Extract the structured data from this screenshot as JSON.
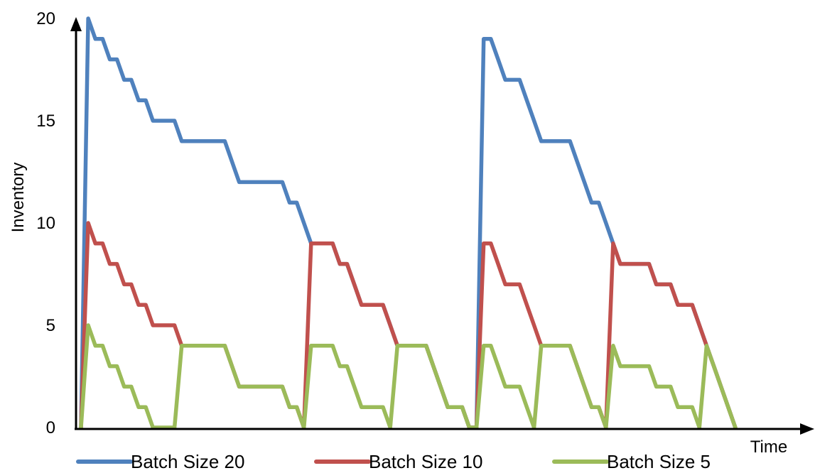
{
  "chart_data": {
    "type": "line",
    "title": "",
    "xlabel": "Time",
    "ylabel": "Inventory",
    "ylim": [
      0,
      20
    ],
    "yticks": [
      "0",
      "5",
      "10",
      "15",
      "20"
    ],
    "xlim": [
      0,
      100
    ],
    "grid": false,
    "legend_position": "bottom",
    "series": [
      {
        "name": "Batch Size 20",
        "color": "#4f81bd",
        "points": [
          [
            0,
            0
          ],
          [
            1,
            20
          ],
          [
            2,
            19
          ],
          [
            3,
            19
          ],
          [
            4,
            18
          ],
          [
            5,
            18
          ],
          [
            6,
            17
          ],
          [
            7,
            17
          ],
          [
            8,
            16
          ],
          [
            9,
            16
          ],
          [
            10,
            15
          ],
          [
            13,
            15
          ],
          [
            14,
            14
          ],
          [
            20,
            14
          ],
          [
            21,
            13
          ],
          [
            22,
            12
          ],
          [
            28,
            12
          ],
          [
            29,
            11
          ],
          [
            30,
            11
          ],
          [
            31,
            10
          ],
          [
            32,
            9
          ],
          [
            35,
            9
          ],
          [
            36,
            8
          ],
          [
            37,
            8
          ],
          [
            38,
            7
          ],
          [
            39,
            6
          ],
          [
            42,
            6
          ],
          [
            43,
            5
          ],
          [
            44,
            4
          ],
          [
            48,
            4
          ],
          [
            49,
            3
          ],
          [
            50,
            2
          ],
          [
            51,
            1
          ],
          [
            53,
            1
          ],
          [
            54,
            0
          ],
          [
            55,
            0
          ],
          [
            56,
            19
          ],
          [
            57,
            19
          ],
          [
            58,
            18
          ],
          [
            59,
            17
          ],
          [
            61,
            17
          ],
          [
            62,
            16
          ],
          [
            63,
            15
          ],
          [
            64,
            14
          ],
          [
            68,
            14
          ],
          [
            69,
            13
          ],
          [
            70,
            12
          ],
          [
            71,
            11
          ],
          [
            72,
            11
          ],
          [
            73,
            10
          ],
          [
            74,
            9
          ],
          [
            75,
            8
          ],
          [
            79,
            8
          ],
          [
            80,
            7
          ],
          [
            82,
            7
          ],
          [
            83,
            6
          ],
          [
            85,
            6
          ],
          [
            86,
            5
          ],
          [
            87,
            4
          ],
          [
            88,
            3
          ],
          [
            89,
            2
          ],
          [
            90,
            1
          ],
          [
            91,
            0
          ]
        ]
      },
      {
        "name": "Batch Size 10",
        "color": "#c0504d",
        "points": [
          [
            0,
            0
          ],
          [
            1,
            10
          ],
          [
            2,
            9
          ],
          [
            3,
            9
          ],
          [
            4,
            8
          ],
          [
            5,
            8
          ],
          [
            6,
            7
          ],
          [
            7,
            7
          ],
          [
            8,
            6
          ],
          [
            9,
            6
          ],
          [
            10,
            5
          ],
          [
            13,
            5
          ],
          [
            14,
            4
          ],
          [
            20,
            4
          ],
          [
            21,
            3
          ],
          [
            22,
            2
          ],
          [
            28,
            2
          ],
          [
            29,
            1
          ],
          [
            30,
            1
          ],
          [
            31,
            0
          ],
          [
            32,
            9
          ],
          [
            35,
            9
          ],
          [
            36,
            8
          ],
          [
            37,
            8
          ],
          [
            38,
            7
          ],
          [
            39,
            6
          ],
          [
            42,
            6
          ],
          [
            43,
            5
          ],
          [
            44,
            4
          ],
          [
            48,
            4
          ],
          [
            49,
            3
          ],
          [
            50,
            2
          ],
          [
            51,
            1
          ],
          [
            53,
            1
          ],
          [
            54,
            0
          ],
          [
            55,
            0
          ],
          [
            56,
            9
          ],
          [
            57,
            9
          ],
          [
            58,
            8
          ],
          [
            59,
            7
          ],
          [
            61,
            7
          ],
          [
            62,
            6
          ],
          [
            63,
            5
          ],
          [
            64,
            4
          ],
          [
            68,
            4
          ],
          [
            69,
            3
          ],
          [
            70,
            2
          ],
          [
            71,
            1
          ],
          [
            72,
            1
          ],
          [
            73,
            0
          ],
          [
            74,
            9
          ],
          [
            75,
            8
          ],
          [
            79,
            8
          ],
          [
            80,
            7
          ],
          [
            82,
            7
          ],
          [
            83,
            6
          ],
          [
            85,
            6
          ],
          [
            86,
            5
          ],
          [
            87,
            4
          ],
          [
            88,
            3
          ],
          [
            89,
            2
          ],
          [
            90,
            1
          ],
          [
            91,
            0
          ]
        ]
      },
      {
        "name": "Batch Size 5",
        "color": "#9bbb59",
        "points": [
          [
            0,
            0
          ],
          [
            1,
            5
          ],
          [
            2,
            4
          ],
          [
            3,
            4
          ],
          [
            4,
            3
          ],
          [
            5,
            3
          ],
          [
            6,
            2
          ],
          [
            7,
            2
          ],
          [
            8,
            1
          ],
          [
            9,
            1
          ],
          [
            10,
            0
          ],
          [
            13,
            0
          ],
          [
            14,
            4
          ],
          [
            20,
            4
          ],
          [
            21,
            3
          ],
          [
            22,
            2
          ],
          [
            28,
            2
          ],
          [
            29,
            1
          ],
          [
            30,
            1
          ],
          [
            31,
            0
          ],
          [
            32,
            4
          ],
          [
            35,
            4
          ],
          [
            36,
            3
          ],
          [
            37,
            3
          ],
          [
            38,
            2
          ],
          [
            39,
            1
          ],
          [
            42,
            1
          ],
          [
            43,
            0
          ],
          [
            44,
            4
          ],
          [
            48,
            4
          ],
          [
            49,
            3
          ],
          [
            50,
            2
          ],
          [
            51,
            1
          ],
          [
            53,
            1
          ],
          [
            54,
            0
          ],
          [
            55,
            0
          ],
          [
            56,
            4
          ],
          [
            57,
            4
          ],
          [
            58,
            3
          ],
          [
            59,
            2
          ],
          [
            61,
            2
          ],
          [
            62,
            1
          ],
          [
            63,
            0
          ],
          [
            64,
            4
          ],
          [
            68,
            4
          ],
          [
            69,
            3
          ],
          [
            70,
            2
          ],
          [
            71,
            1
          ],
          [
            72,
            1
          ],
          [
            73,
            0
          ],
          [
            74,
            4
          ],
          [
            75,
            3
          ],
          [
            79,
            3
          ],
          [
            80,
            2
          ],
          [
            82,
            2
          ],
          [
            83,
            1
          ],
          [
            85,
            1
          ],
          [
            86,
            0
          ],
          [
            87,
            4
          ],
          [
            88,
            3
          ],
          [
            89,
            2
          ],
          [
            90,
            1
          ],
          [
            91,
            0
          ]
        ]
      }
    ]
  }
}
